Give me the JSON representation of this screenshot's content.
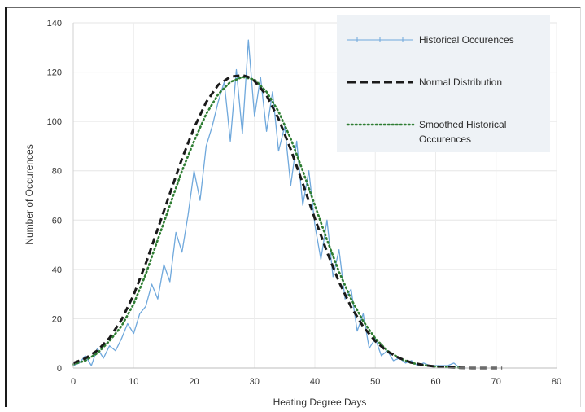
{
  "chart_data": {
    "type": "line",
    "xlabel": "Heating Degree Days",
    "ylabel": "Number of Occurences",
    "xlim": [
      0,
      80
    ],
    "ylim": [
      0,
      140
    ],
    "xticks": [
      0,
      10,
      20,
      30,
      40,
      50,
      60,
      70,
      80
    ],
    "yticks": [
      0,
      20,
      40,
      60,
      80,
      100,
      120,
      140
    ],
    "grid": true,
    "legend_position": "top-right",
    "legend": [
      {
        "label": "Historical Occurences",
        "style": "thin-solid-marker",
        "color": "#6fa8dc"
      },
      {
        "label": "Normal Distribution",
        "style": "dashed",
        "color": "#1a1a1a"
      },
      {
        "label": "Smoothed Historical Occurences",
        "style": "dotted",
        "color": "#2e7d32"
      }
    ],
    "series": [
      {
        "name": "Historical Occurences",
        "color": "#6fa8dc",
        "x": [
          0,
          1,
          2,
          3,
          4,
          5,
          6,
          7,
          8,
          9,
          10,
          11,
          12,
          13,
          14,
          15,
          16,
          17,
          18,
          19,
          20,
          21,
          22,
          23,
          24,
          25,
          26,
          27,
          28,
          29,
          30,
          31,
          32,
          33,
          34,
          35,
          36,
          37,
          38,
          39,
          40,
          41,
          42,
          43,
          44,
          45,
          46,
          47,
          48,
          49,
          50,
          51,
          52,
          53,
          54,
          55,
          56,
          57,
          58,
          59,
          60,
          61,
          62,
          63,
          64,
          65
        ],
        "y": [
          1,
          2,
          5,
          1,
          8,
          4,
          9,
          7,
          12,
          18,
          14,
          22,
          25,
          34,
          28,
          42,
          35,
          55,
          47,
          62,
          80,
          68,
          90,
          98,
          108,
          116,
          92,
          121,
          95,
          133,
          102,
          118,
          96,
          112,
          88,
          98,
          74,
          92,
          66,
          80,
          58,
          44,
          60,
          37,
          48,
          28,
          32,
          15,
          22,
          8,
          12,
          5,
          7,
          3,
          4,
          2,
          3,
          1,
          2,
          1,
          1,
          1,
          1,
          2,
          0,
          0
        ]
      },
      {
        "name": "Normal Distribution",
        "color": "#1a1a1a",
        "x": [
          0,
          2,
          4,
          6,
          8,
          10,
          12,
          14,
          16,
          18,
          20,
          22,
          24,
          26,
          28,
          29,
          30,
          32,
          34,
          36,
          38,
          40,
          42,
          44,
          46,
          48,
          50,
          52,
          54,
          56,
          58,
          60,
          62,
          64,
          66,
          68,
          70,
          71
        ],
        "y": [
          2,
          3.9,
          7.1,
          12.2,
          19.6,
          29.7,
          42.3,
          56.4,
          70.8,
          84.9,
          97.4,
          107.8,
          114.8,
          118.1,
          118.7,
          118,
          116.4,
          110.6,
          101,
          88.7,
          74.9,
          60.6,
          47.1,
          34.9,
          24.8,
          16.8,
          10.9,
          6.7,
          4,
          2.2,
          1.2,
          0.6,
          0.3,
          0.1,
          0,
          0,
          0,
          0
        ]
      },
      {
        "name": "Smoothed Historical Occurences",
        "color": "#2e7d32",
        "x": [
          0,
          2,
          4,
          6,
          8,
          10,
          12,
          14,
          16,
          18,
          20,
          22,
          24,
          26,
          28,
          30,
          32,
          34,
          36,
          38,
          40,
          42,
          44,
          46,
          48,
          50,
          52,
          54,
          56,
          58,
          60,
          62,
          64
        ],
        "y": [
          1.5,
          3,
          6,
          11,
          17,
          26,
          38,
          52,
          66,
          80,
          92,
          103,
          111,
          116,
          118,
          117,
          112,
          104,
          93,
          80,
          66,
          52,
          39,
          28,
          19,
          12,
          7,
          4,
          2,
          1.2,
          0.6,
          0.3,
          0.1
        ]
      }
    ]
  }
}
